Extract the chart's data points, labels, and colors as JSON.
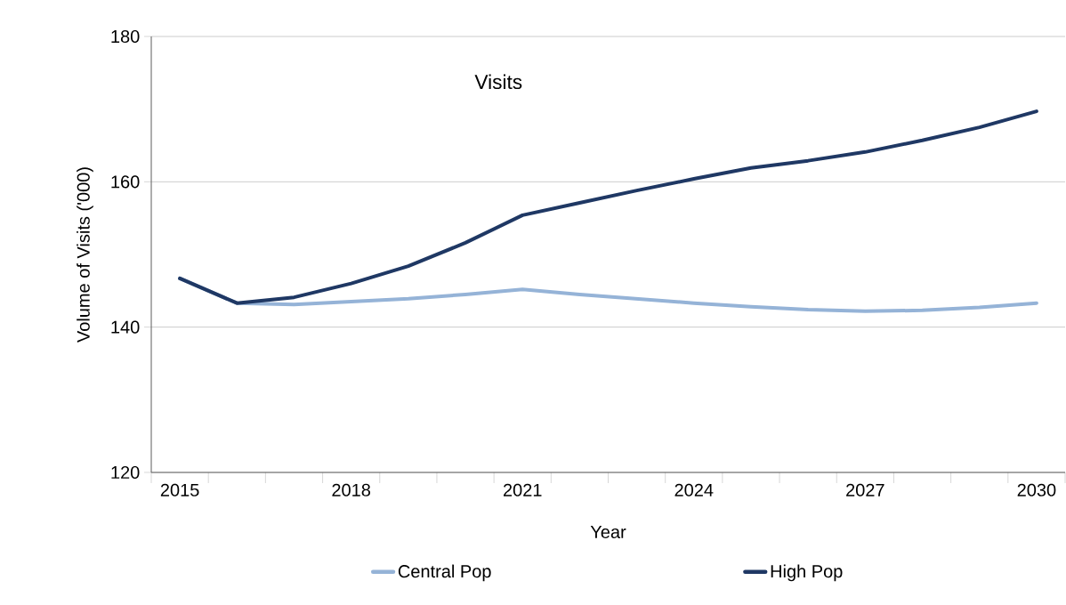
{
  "chart_data": {
    "type": "line",
    "title": "Visits",
    "xlabel": "Year",
    "ylabel": "Volume of Visits ('000)",
    "categories": [
      "2015",
      null,
      null,
      "2018",
      null,
      null,
      "2021",
      null,
      null,
      "2024",
      null,
      null,
      "2027",
      null,
      null,
      "2030"
    ],
    "series": [
      {
        "name": "Central Pop",
        "color": "#95b3d7",
        "values": [
          146.7,
          143.3,
          143.1,
          143.5,
          143.9,
          144.5,
          145.2,
          144.5,
          143.9,
          143.3,
          142.8,
          142.4,
          142.2,
          142.3,
          142.7,
          143.3
        ]
      },
      {
        "name": "High Pop",
        "color": "#1f3864",
        "values": [
          146.7,
          143.3,
          144.1,
          146.0,
          148.4,
          151.6,
          155.4,
          157.1,
          158.8,
          160.4,
          161.9,
          162.9,
          164.1,
          165.7,
          167.5,
          169.7
        ]
      }
    ],
    "ylim": [
      120,
      180
    ],
    "yticks": [
      120,
      140,
      160,
      180
    ],
    "grid": "y",
    "legend": "bottom",
    "marker": "none",
    "line_style": "solid"
  }
}
